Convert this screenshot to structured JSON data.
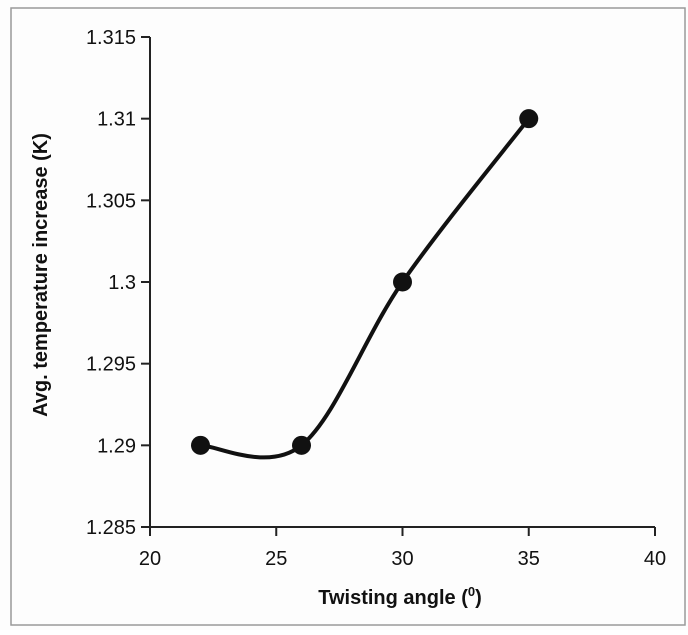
{
  "chart_data": {
    "type": "line",
    "title": "",
    "xlabel": "Twisting angle (",
    "xlabel_sup": "0",
    "xlabel_suffix": ")",
    "ylabel": "Avg. temperature increase (K)",
    "xlim": [
      20,
      40
    ],
    "ylim": [
      1.285,
      1.315
    ],
    "x_ticks": [
      "20",
      "25",
      "30",
      "35",
      "40"
    ],
    "y_ticks": [
      "1.285",
      "1.29",
      "1.295",
      "1.3",
      "1.305",
      "1.31",
      "1.315"
    ],
    "smooth": true,
    "grid": false,
    "legend": "none",
    "series": [
      {
        "x": [
          22,
          26,
          30,
          35
        ],
        "y": [
          1.29,
          1.29,
          1.3,
          1.31
        ],
        "color": "#111111",
        "marker": "circle"
      }
    ]
  }
}
